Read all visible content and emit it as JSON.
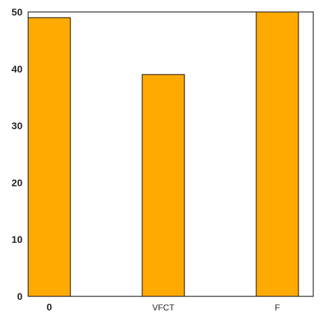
{
  "chart_data": {
    "type": "bar",
    "title": "",
    "xlabel": "",
    "ylabel": "",
    "categories": [
      "0",
      "VFCT",
      "F"
    ],
    "values": [
      49,
      39,
      50
    ],
    "ylim": [
      0,
      50
    ],
    "yticks": [
      "0",
      "10",
      "20",
      "30",
      "40",
      "50"
    ],
    "bar_color": "#FFAA00",
    "edge_color": "#000000",
    "grid": false,
    "legend": "none"
  }
}
